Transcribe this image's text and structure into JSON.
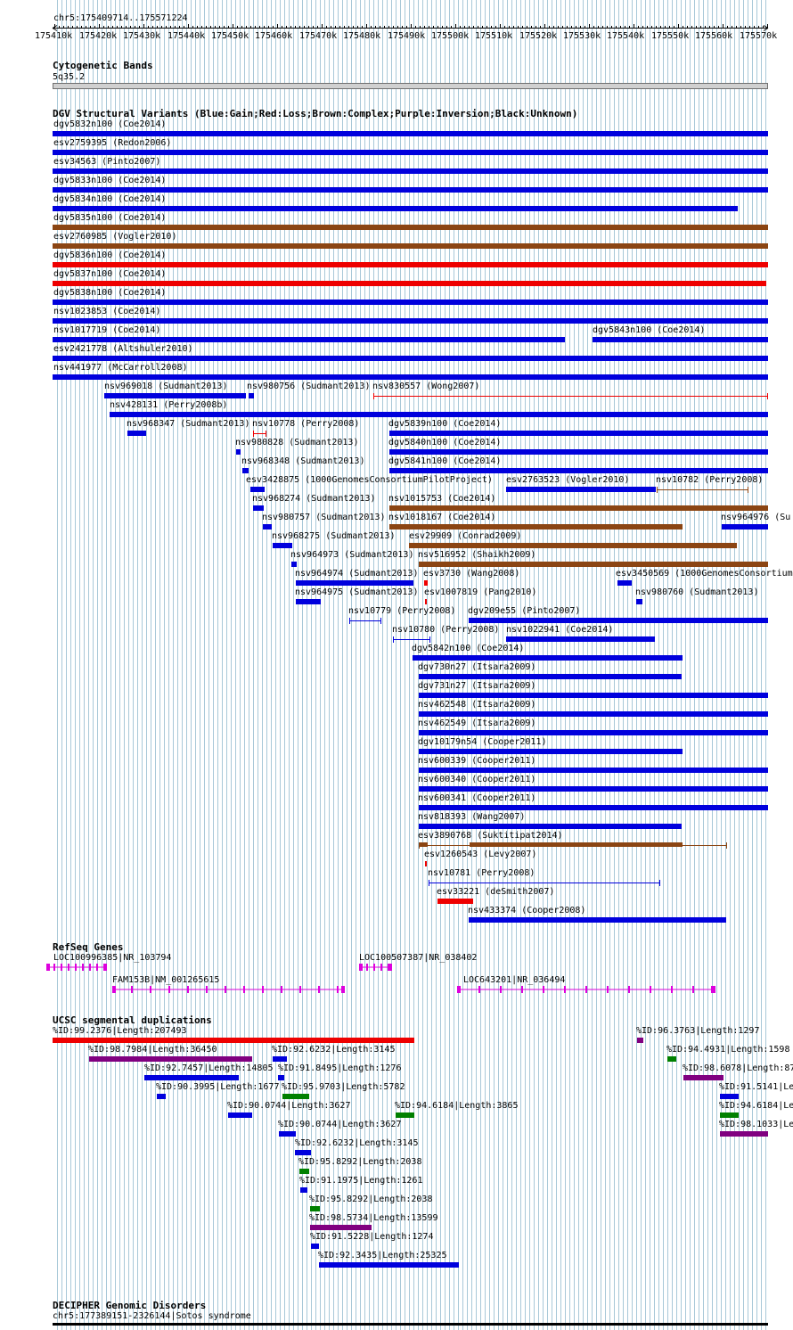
{
  "ruler": {
    "region": "chr5:175409714..175571224",
    "ticks": [
      "175410k",
      "175420k",
      "175430k",
      "175440k",
      "175450k",
      "175460k",
      "175470k",
      "175480k",
      "175490k",
      "175500k",
      "175510k",
      "175520k",
      "175530k",
      "175540k",
      "175550k",
      "175560k",
      "175570k"
    ]
  },
  "cyto": {
    "title": "Cytogenetic Bands",
    "band": "5q35.2"
  },
  "dgv": {
    "title": "DGV Structural Variants (Blue:Gain;Red:Loss;Brown:Complex;Purple:Inversion;Black:Unknown)",
    "items": [
      {
        "label": "dgv5832n100 (Coe2014)",
        "color": "blue"
      },
      {
        "label": "esv2759395 (Redon2006)",
        "color": "blue"
      },
      {
        "label": "esv34563 (Pinto2007)",
        "color": "blue"
      },
      {
        "label": "dgv5833n100 (Coe2014)",
        "color": "blue"
      },
      {
        "label": "dgv5834n100 (Coe2014)",
        "color": "blue"
      },
      {
        "label": "dgv5835n100 (Coe2014)",
        "color": "brown"
      },
      {
        "label": "esv2760985 (Vogler2010)",
        "color": "brown"
      },
      {
        "label": "dgv5836n100 (Coe2014)",
        "color": "red"
      },
      {
        "label": "dgv5837n100 (Coe2014)",
        "color": "red"
      },
      {
        "label": "dgv5838n100 (Coe2014)",
        "color": "blue"
      },
      {
        "label": "nsv1023853 (Coe2014)",
        "color": "blue"
      },
      {
        "label": "nsv1017719 (Coe2014)",
        "color": "blue"
      },
      {
        "label": "dgv5843n100 (Coe2014)",
        "color": "blue"
      },
      {
        "label": "esv2421778 (Altshuler2010)",
        "color": "blue"
      },
      {
        "label": "nsv441977 (McCarroll2008)",
        "color": "blue"
      },
      {
        "label": "nsv969018 (Sudmant2013)",
        "color": "blue"
      },
      {
        "label": "nsv980756 (Sudmant2013)",
        "color": "blue"
      },
      {
        "label": "nsv830557 (Wong2007)",
        "color": "red"
      },
      {
        "label": "nsv428131 (Perry2008b)",
        "color": "blue"
      },
      {
        "label": "nsv968347 (Sudmant2013)",
        "color": "blue"
      },
      {
        "label": "nsv10778 (Perry2008)",
        "color": "red"
      },
      {
        "label": "dgv5839n100 (Coe2014)",
        "color": "blue"
      },
      {
        "label": "nsv980828 (Sudmant2013)",
        "color": "blue"
      },
      {
        "label": "dgv5840n100 (Coe2014)",
        "color": "blue"
      },
      {
        "label": "nsv968348 (Sudmant2013)",
        "color": "blue"
      },
      {
        "label": "dgv5841n100 (Coe2014)",
        "color": "blue"
      },
      {
        "label": "esv3428875 (1000GenomesConsortiumPilotProject)",
        "color": "blue"
      },
      {
        "label": "esv2763523 (Vogler2010)",
        "color": "blue"
      },
      {
        "label": "nsv10782 (Perry2008)",
        "color": "brown"
      },
      {
        "label": "nsv968274 (Sudmant2013)",
        "color": "blue"
      },
      {
        "label": "nsv1015753 (Coe2014)",
        "color": "brown"
      },
      {
        "label": "nsv980757 (Sudmant2013)",
        "color": "blue"
      },
      {
        "label": "nsv1018167 (Coe2014)",
        "color": "brown"
      },
      {
        "label": "nsv964976 (Su",
        "color": "blue"
      },
      {
        "label": "nsv968275 (Sudmant2013)",
        "color": "blue"
      },
      {
        "label": "esv29909 (Conrad2009)",
        "color": "brown"
      },
      {
        "label": "nsv964973 (Sudmant2013)",
        "color": "blue"
      },
      {
        "label": "nsv516952 (Shaikh2009)",
        "color": "brown"
      },
      {
        "label": "nsv964974 (Sudmant2013)",
        "color": "blue"
      },
      {
        "label": "esv3730 (Wang2008)",
        "color": "red"
      },
      {
        "label": "esv3450569 (1000GenomesConsortium",
        "color": "blue"
      },
      {
        "label": "nsv964975 (Sudmant2013)",
        "color": "blue"
      },
      {
        "label": "esv1007819 (Pang2010)",
        "color": "red"
      },
      {
        "label": "nsv980760 (Sudmant2013)",
        "color": "blue"
      },
      {
        "label": "nsv10779 (Perry2008)",
        "color": "blue"
      },
      {
        "label": "dgv209e55 (Pinto2007)",
        "color": "blue"
      },
      {
        "label": "nsv10780 (Perry2008)",
        "color": "blue"
      },
      {
        "label": "nsv1022941 (Coe2014)",
        "color": "blue"
      },
      {
        "label": "dgv5842n100 (Coe2014)",
        "color": "blue"
      },
      {
        "label": "dgv730n27 (Itsara2009)",
        "color": "blue"
      },
      {
        "label": "dgv731n27 (Itsara2009)",
        "color": "blue"
      },
      {
        "label": "nsv462548 (Itsara2009)",
        "color": "blue"
      },
      {
        "label": "nsv462549 (Itsara2009)",
        "color": "blue"
      },
      {
        "label": "dgv10179n54 (Cooper2011)",
        "color": "blue"
      },
      {
        "label": "nsv600339 (Cooper2011)",
        "color": "blue"
      },
      {
        "label": "nsv600340 (Cooper2011)",
        "color": "blue"
      },
      {
        "label": "nsv600341 (Cooper2011)",
        "color": "blue"
      },
      {
        "label": "nsv818393 (Wang2007)",
        "color": "blue"
      },
      {
        "label": "esv3890768 (Suktitipat2014)",
        "color": "brown"
      },
      {
        "label": "esv1260543 (Levy2007)",
        "color": "red"
      },
      {
        "label": "nsv10781 (Perry2008)",
        "color": "blue"
      },
      {
        "label": "esv33221 (deSmith2007)",
        "color": "red"
      },
      {
        "label": "nsv433374 (Cooper2008)",
        "color": "blue"
      }
    ]
  },
  "refseq": {
    "title": "RefSeq Genes",
    "genes": [
      {
        "label": "LOC100996385|NR_103794"
      },
      {
        "label": "LOC100507387|NR_038402"
      },
      {
        "label": "FAM153B|NM_001265615"
      },
      {
        "label": "LOC643201|NR_036494"
      }
    ]
  },
  "segdup": {
    "title": "UCSC segmental duplications",
    "items": [
      {
        "label": "%ID:99.2376|Length:207493",
        "color": "red"
      },
      {
        "label": "%ID:96.3763|Length:1297",
        "color": "purple"
      },
      {
        "label": "%ID:98.7984|Length:36450",
        "color": "purple"
      },
      {
        "label": "%ID:92.6232|Length:3145",
        "color": "blue"
      },
      {
        "label": "%ID:94.4931|Length:1598",
        "color": "green"
      },
      {
        "label": "%ID:92.7457|Length:14805",
        "color": "blue"
      },
      {
        "label": "%ID:91.8495|Length:1276",
        "color": "blue"
      },
      {
        "label": "%ID:98.6078|Length:87",
        "color": "purple"
      },
      {
        "label": "%ID:90.3995|Length:1677",
        "color": "blue"
      },
      {
        "label": "%ID:95.9703|Length:5782",
        "color": "green"
      },
      {
        "label": "%ID:91.5141|Le",
        "color": "blue"
      },
      {
        "label": "%ID:90.0744|Length:3627",
        "color": "blue"
      },
      {
        "label": "%ID:94.6184|Length:3865",
        "color": "green"
      },
      {
        "label": "%ID:94.6184|Le",
        "color": "green"
      },
      {
        "label": "%ID:90.0744|Length:3627",
        "color": "blue"
      },
      {
        "label": "%ID:98.1033|Le",
        "color": "purple"
      },
      {
        "label": "%ID:92.6232|Length:3145",
        "color": "blue"
      },
      {
        "label": "%ID:95.8292|Length:2038",
        "color": "green"
      },
      {
        "label": "%ID:91.1975|Length:1261",
        "color": "blue"
      },
      {
        "label": "%ID:95.8292|Length:2038",
        "color": "green"
      },
      {
        "label": "%ID:98.5734|Length:13599",
        "color": "purple"
      },
      {
        "label": "%ID:91.5228|Length:1274",
        "color": "blue"
      },
      {
        "label": "%ID:92.3435|Length:25325",
        "color": "blue"
      }
    ]
  },
  "decipher": {
    "title": "DECIPHER Genomic Disorders",
    "items": [
      {
        "label": "chr5:177389151-2326144|Sotos syndrome"
      }
    ]
  },
  "colors": {
    "blue": "#0000dd",
    "red": "#ee0000",
    "brown": "#8b4513",
    "purple": "#800080",
    "green": "#008000",
    "gene": "#dd00dd",
    "grid": "#a8c8d8",
    "black": "#000000"
  }
}
